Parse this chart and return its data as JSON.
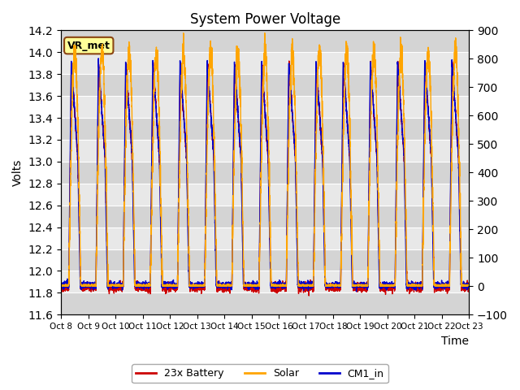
{
  "title": "System Power Voltage",
  "xlabel": "Time",
  "ylabel_left": "Volts",
  "ylim_left": [
    11.6,
    14.2
  ],
  "ylim_right": [
    -100,
    900
  ],
  "yticks_left": [
    11.6,
    11.8,
    12.0,
    12.2,
    12.4,
    12.6,
    12.8,
    13.0,
    13.2,
    13.4,
    13.6,
    13.8,
    14.0,
    14.2
  ],
  "yticks_right": [
    -100,
    0,
    100,
    200,
    300,
    400,
    500,
    600,
    700,
    800,
    900
  ],
  "xtick_labels": [
    "Oct 8",
    "Oct 9",
    "Oct 10",
    "Oct 11",
    "Oct 12",
    "Oct 13",
    "Oct 14",
    "Oct 15",
    "Oct 16",
    "Oct 17",
    "Oct 18",
    "Oct 19",
    "Oct 20",
    "Oct 21",
    "Oct 22",
    "Oct 23"
  ],
  "num_days": 15,
  "color_battery": "#CC0000",
  "color_solar": "#FFA500",
  "color_cm1": "#0000CC",
  "vr_met_label": "VR_met",
  "legend_labels": [
    "23x Battery",
    "Solar",
    "CM1_in"
  ],
  "background_color": "#E8E8E8",
  "grid_color": "#FFFFFF",
  "annotation_box_color": "#FFFF99",
  "annotation_box_edge": "#8B4513"
}
